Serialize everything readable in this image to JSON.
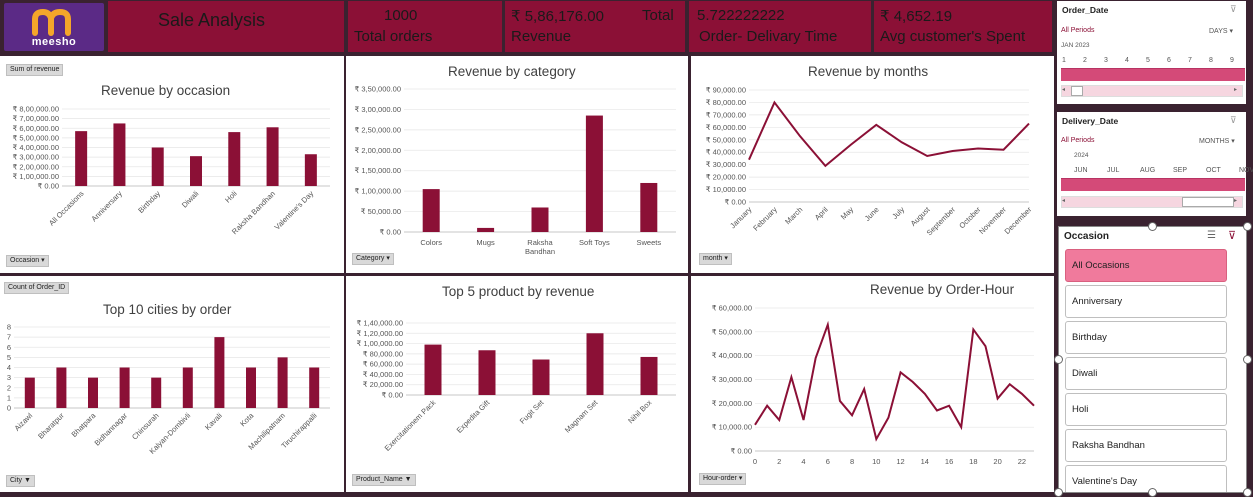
{
  "header": {
    "logo_text": "meesho",
    "title": "Sale Analysis"
  },
  "kpis": [
    {
      "value": "1000",
      "label": "Total orders"
    },
    {
      "value": "₹ 5,86,176.00",
      "label": "Revenue",
      "extra": "Total"
    },
    {
      "value": "5.722222222",
      "label": "Order- Delivary Time"
    },
    {
      "value": "₹ 4,652.19",
      "label": "Avg customer's  Spent"
    }
  ],
  "colors": {
    "accent": "#8b1036",
    "selected": "#f07a9c",
    "background": "#3a2230"
  },
  "charts": {
    "occasion": {
      "title": "Revenue by occasion",
      "field_button": "Sum of revenue",
      "filter_button": "Occasion"
    },
    "category": {
      "title": "Revenue by category",
      "filter_button": "Category"
    },
    "months": {
      "title": "Revenue by months",
      "filter_button": "month"
    },
    "cities": {
      "title": "Top 10 cities by order",
      "field_button": "Count of Order_ID",
      "filter_button": "City"
    },
    "products": {
      "title": "Top 5 product by revenue",
      "filter_button": "Product_Name"
    },
    "hours": {
      "title": "Revenue by Order-Hour",
      "filter_button": "Hour-order"
    }
  },
  "chart_data": [
    {
      "type": "bar",
      "title": "Revenue by occasion",
      "categories": [
        "All Occasions",
        "Anniversary",
        "Birthday",
        "Diwali",
        "Holi",
        "Raksha Bandhan",
        "Valentine's Day"
      ],
      "values": [
        570000,
        650000,
        400000,
        310000,
        560000,
        610000,
        330000
      ],
      "ylim": [
        0,
        800000
      ],
      "yticks": [
        "₹ 0.00",
        "₹ 1,00,000.00",
        "₹ 2,00,000.00",
        "₹ 3,00,000.00",
        "₹ 4,00,000.00",
        "₹ 5,00,000.00",
        "₹ 6,00,000.00",
        "₹ 7,00,000.00",
        "₹ 8,00,000.00"
      ]
    },
    {
      "type": "bar",
      "title": "Revenue by category",
      "categories": [
        "Colors",
        "Mugs",
        "Raksha Bandhan",
        "Soft Toys",
        "Sweets"
      ],
      "values": [
        105000,
        10000,
        60000,
        285000,
        120000
      ],
      "ylim": [
        0,
        350000
      ],
      "yticks": [
        "₹ 0.00",
        "₹ 50,000.00",
        "₹ 1,00,000.00",
        "₹ 1,50,000.00",
        "₹ 2,00,000.00",
        "₹ 2,50,000.00",
        "₹ 3,00,000.00",
        "₹ 3,50,000.00"
      ]
    },
    {
      "type": "line",
      "title": "Revenue by months",
      "categories": [
        "January",
        "February",
        "March",
        "April",
        "May",
        "June",
        "July",
        "August",
        "September",
        "October",
        "November",
        "December"
      ],
      "values": [
        34000,
        80000,
        53000,
        29000,
        46000,
        62000,
        48000,
        37000,
        41000,
        43000,
        42000,
        63000
      ],
      "ylim": [
        0,
        90000
      ],
      "yticks": [
        "₹ 0.00",
        "₹ 10,000.00",
        "₹ 20,000.00",
        "₹ 30,000.00",
        "₹ 40,000.00",
        "₹ 50,000.00",
        "₹ 60,000.00",
        "₹ 70,000.00",
        "₹ 80,000.00",
        "₹ 90,000.00"
      ]
    },
    {
      "type": "bar",
      "title": "Top 10 cities by order",
      "categories": [
        "Aizawl",
        "Bharatpur",
        "Bhatpara",
        "Bidhannagar",
        "Chinsurah",
        "Kalyan-Dombivli",
        "Kavali",
        "Kota",
        "Machilipatnam",
        "Tiruchirappalli"
      ],
      "values": [
        3,
        4,
        3,
        4,
        3,
        4,
        7,
        4,
        5,
        4
      ],
      "ylim": [
        0,
        8
      ],
      "yticks": [
        "0",
        "1",
        "2",
        "3",
        "4",
        "5",
        "6",
        "7",
        "8"
      ]
    },
    {
      "type": "bar",
      "title": "Top 5 product by revenue",
      "categories": [
        "Exercitationem Pack",
        "Expedita Gift",
        "Fugit Set",
        "Magnam Set",
        "Nihil Box"
      ],
      "values": [
        98000,
        87000,
        69000,
        120000,
        74000
      ],
      "ylim": [
        0,
        140000
      ],
      "yticks": [
        "₹ 0.00",
        "₹ 20,000.00",
        "₹ 40,000.00",
        "₹ 60,000.00",
        "₹ 80,000.00",
        "₹ 1,00,000.00",
        "₹ 1,20,000.00",
        "₹ 1,40,000.00"
      ]
    },
    {
      "type": "line",
      "title": "Revenue by Order-Hour",
      "x": [
        0,
        1,
        2,
        3,
        4,
        5,
        6,
        7,
        8,
        9,
        10,
        11,
        12,
        13,
        14,
        15,
        16,
        17,
        18,
        19,
        20,
        21,
        22,
        23
      ],
      "values": [
        11000,
        19000,
        13000,
        31000,
        13000,
        39000,
        53000,
        21000,
        15000,
        26000,
        5000,
        14000,
        33000,
        29000,
        24000,
        17000,
        19000,
        10000,
        51000,
        44000,
        22000,
        28000,
        24000,
        19000
      ],
      "ylim": [
        0,
        60000
      ],
      "xticks": [
        "0",
        "2",
        "4",
        "6",
        "8",
        "10",
        "12",
        "14",
        "16",
        "18",
        "20",
        "22"
      ],
      "yticks": [
        "₹ 0.00",
        "₹ 10,000.00",
        "₹ 20,000.00",
        "₹ 30,000.00",
        "₹ 40,000.00",
        "₹ 50,000.00",
        "₹ 60,000.00"
      ]
    }
  ],
  "slicers": {
    "order_date": {
      "title": "Order_Date",
      "period": "All Periods",
      "unit": "DAYS",
      "year": "JAN 2023",
      "ticks": [
        "1",
        "2",
        "3",
        "4",
        "5",
        "6",
        "7",
        "8",
        "9"
      ]
    },
    "delivery_date": {
      "title": "Delivery_Date",
      "period": "All Periods",
      "unit": "MONTHS",
      "year": "2024",
      "ticks": [
        "JUN",
        "JUL",
        "AUG",
        "SEP",
        "OCT",
        "NOV"
      ]
    },
    "occasion": {
      "title": "Occasion",
      "items": [
        "All Occasions",
        "Anniversary",
        "Birthday",
        "Diwali",
        "Holi",
        "Raksha Bandhan",
        "Valentine's Day"
      ],
      "selected": "All Occasions"
    }
  }
}
